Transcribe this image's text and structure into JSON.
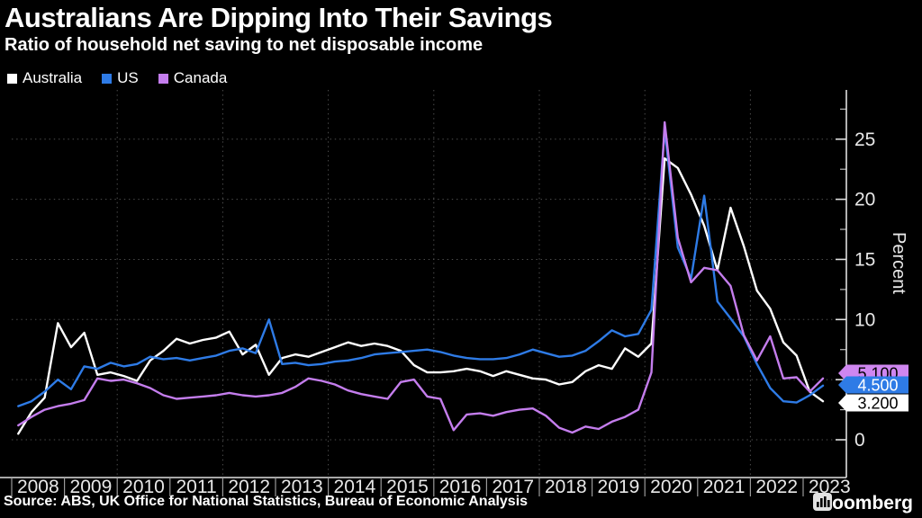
{
  "header": {
    "title": "Australians Are Dipping Into Their Savings",
    "subtitle": "Ratio of household net saving to net disposable income"
  },
  "legend": {
    "items": [
      {
        "label": "Australia",
        "color": "#ffffff"
      },
      {
        "label": "US",
        "color": "#2e7be6"
      },
      {
        "label": "Canada",
        "color": "#c47ded"
      }
    ]
  },
  "y_axis": {
    "unit_label": "Percent",
    "major_ticks": [
      0,
      5,
      10,
      15,
      20,
      25
    ],
    "minor_ticks": [
      2.5,
      7.5,
      12.5,
      17.5,
      22.5,
      27.5
    ]
  },
  "x_axis": {
    "years": [
      "2008",
      "2009",
      "2010",
      "2011",
      "2012",
      "2013",
      "2014",
      "2015",
      "2016",
      "2017",
      "2018",
      "2019",
      "2020",
      "2021",
      "2022",
      "2023"
    ]
  },
  "end_labels": [
    {
      "series": "Canada",
      "value": "5.100",
      "bg": "#cf86f0",
      "fg": "#000000"
    },
    {
      "series": "US",
      "value": "4.500",
      "bg": "#2e7be6",
      "fg": "#ffffff"
    },
    {
      "series": "Australia",
      "value": "3.200",
      "bg": "#ffffff",
      "fg": "#000000"
    }
  ],
  "footer": {
    "source": "Source: ABS, UK Office for National Statistics, Bureau of Economic Analysis",
    "brand": "Bloomberg"
  },
  "chart_data": {
    "type": "line",
    "title": "Australians Are Dipping Into Their Savings",
    "subtitle": "Ratio of household net saving to net disposable income",
    "ylabel": "Percent",
    "frequency": "quarterly",
    "x_start": "2008Q1",
    "x_end": "2023Q2",
    "ylim": [
      -3,
      29
    ],
    "grid": "dotted",
    "legend_position": "top-left",
    "categories_years": [
      2008,
      2009,
      2010,
      2011,
      2012,
      2013,
      2014,
      2015,
      2016,
      2017,
      2018,
      2019,
      2020,
      2021,
      2022,
      2023
    ],
    "series": [
      {
        "name": "Australia",
        "color": "#ffffff",
        "last_value": 3.2,
        "values": [
          0.5,
          2.3,
          3.5,
          9.7,
          7.7,
          8.9,
          5.4,
          5.6,
          5.3,
          4.9,
          6.6,
          7.4,
          8.4,
          8.0,
          8.3,
          8.5,
          9.0,
          7.1,
          7.9,
          5.4,
          6.8,
          7.1,
          6.9,
          7.3,
          7.7,
          8.1,
          7.8,
          8.0,
          7.8,
          7.4,
          6.2,
          5.6,
          5.6,
          5.7,
          5.9,
          5.7,
          5.3,
          5.7,
          5.4,
          5.1,
          5.0,
          4.6,
          4.8,
          5.7,
          6.2,
          5.9,
          7.6,
          6.9,
          8.0,
          23.4,
          22.6,
          20.4,
          17.8,
          14.1,
          19.3,
          16.1,
          12.4,
          10.9,
          8.1,
          7.0,
          4.0,
          3.2
        ]
      },
      {
        "name": "US",
        "color": "#2e7be6",
        "last_value": 4.5,
        "values": [
          2.8,
          3.2,
          4.0,
          5.0,
          4.2,
          6.1,
          5.9,
          6.4,
          6.1,
          6.3,
          6.9,
          6.7,
          6.8,
          6.6,
          6.8,
          7.0,
          7.4,
          7.6,
          7.2,
          10.0,
          6.3,
          6.4,
          6.2,
          6.3,
          6.5,
          6.6,
          6.8,
          7.1,
          7.2,
          7.3,
          7.4,
          7.5,
          7.3,
          7.0,
          6.8,
          6.7,
          6.7,
          6.8,
          7.1,
          7.5,
          7.2,
          6.9,
          7.0,
          7.4,
          8.2,
          9.1,
          8.6,
          8.8,
          10.8,
          25.8,
          16.0,
          13.4,
          20.3,
          11.5,
          10.1,
          8.6,
          6.3,
          4.3,
          3.2,
          3.1,
          3.7,
          4.5
        ]
      },
      {
        "name": "Canada",
        "color": "#c47ded",
        "last_value": 5.1,
        "values": [
          1.2,
          1.9,
          2.5,
          2.8,
          3.0,
          3.3,
          5.1,
          4.9,
          5.0,
          4.7,
          4.3,
          3.7,
          3.4,
          3.5,
          3.6,
          3.7,
          3.9,
          3.7,
          3.6,
          3.7,
          3.9,
          4.4,
          5.1,
          4.9,
          4.6,
          4.1,
          3.8,
          3.6,
          3.4,
          4.8,
          5.0,
          3.6,
          3.4,
          0.8,
          2.1,
          2.2,
          2.0,
          2.3,
          2.5,
          2.6,
          2.0,
          1.0,
          0.6,
          1.1,
          0.9,
          1.5,
          1.9,
          2.5,
          5.6,
          26.4,
          16.8,
          13.1,
          14.3,
          14.1,
          12.8,
          8.7,
          6.6,
          8.6,
          5.1,
          5.2,
          4.0,
          5.1
        ]
      }
    ]
  }
}
